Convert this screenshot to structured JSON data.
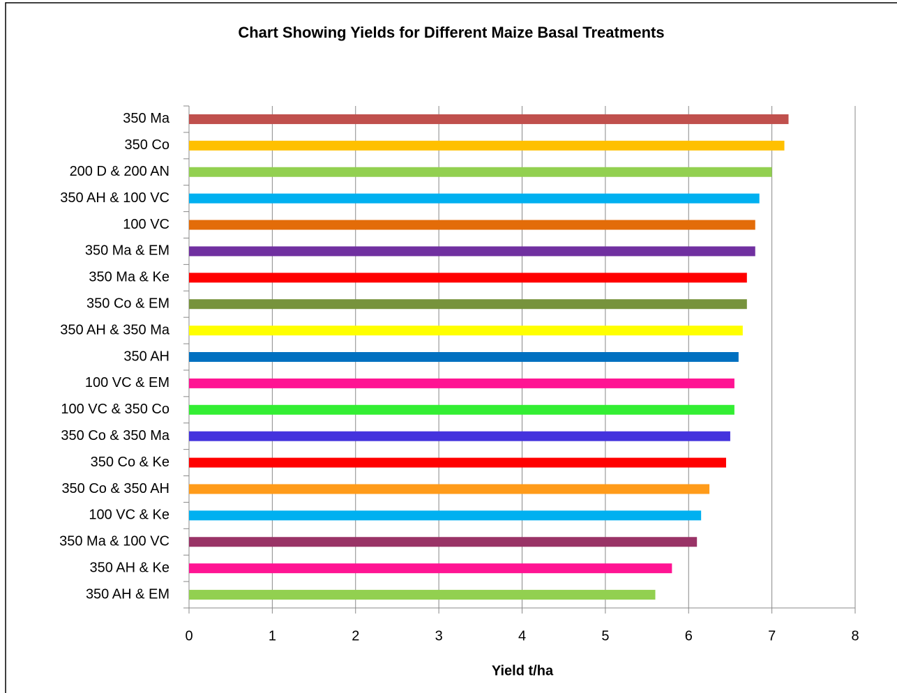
{
  "chart_data": {
    "type": "bar",
    "orientation": "horizontal",
    "title": "Chart Showing Yields for Different Maize Basal Treatments",
    "x_label": "Yield t/ha",
    "categories": [
      "350 Ma",
      "350 Co",
      "200 D & 200 AN",
      "350 AH & 100 VC",
      "100 VC",
      "350 Ma & EM",
      "350 Ma & Ke",
      "350 Co & EM",
      "350 AH & 350 Ma",
      "350 AH",
      "100 VC & EM",
      "100 VC & 350 Co",
      "350 Co & 350 Ma",
      "350 Co & Ke",
      "350 Co & 350 AH",
      "100 VC & Ke",
      "350 Ma & 100 VC",
      "350 AH & Ke",
      "350 AH & EM"
    ],
    "values": [
      7.2,
      7.15,
      7.0,
      6.85,
      6.8,
      6.8,
      6.7,
      6.7,
      6.65,
      6.6,
      6.55,
      6.55,
      6.5,
      6.45,
      6.25,
      6.15,
      6.1,
      5.8,
      5.6
    ],
    "colors": [
      "#c0504d",
      "#ffc000",
      "#92d050",
      "#00b0f0",
      "#e36c09",
      "#7030a0",
      "#ff0000",
      "#77933c",
      "#ffff00",
      "#0070c0",
      "#ff1493",
      "#33ee33",
      "#4433dd",
      "#ff0000",
      "#ff9b1a",
      "#00b0f0",
      "#993366",
      "#ff1493",
      "#92d050"
    ],
    "xlim": [
      0,
      8
    ],
    "xticks": [
      0,
      1,
      2,
      3,
      4,
      5,
      6,
      7,
      8
    ],
    "grid": true
  }
}
